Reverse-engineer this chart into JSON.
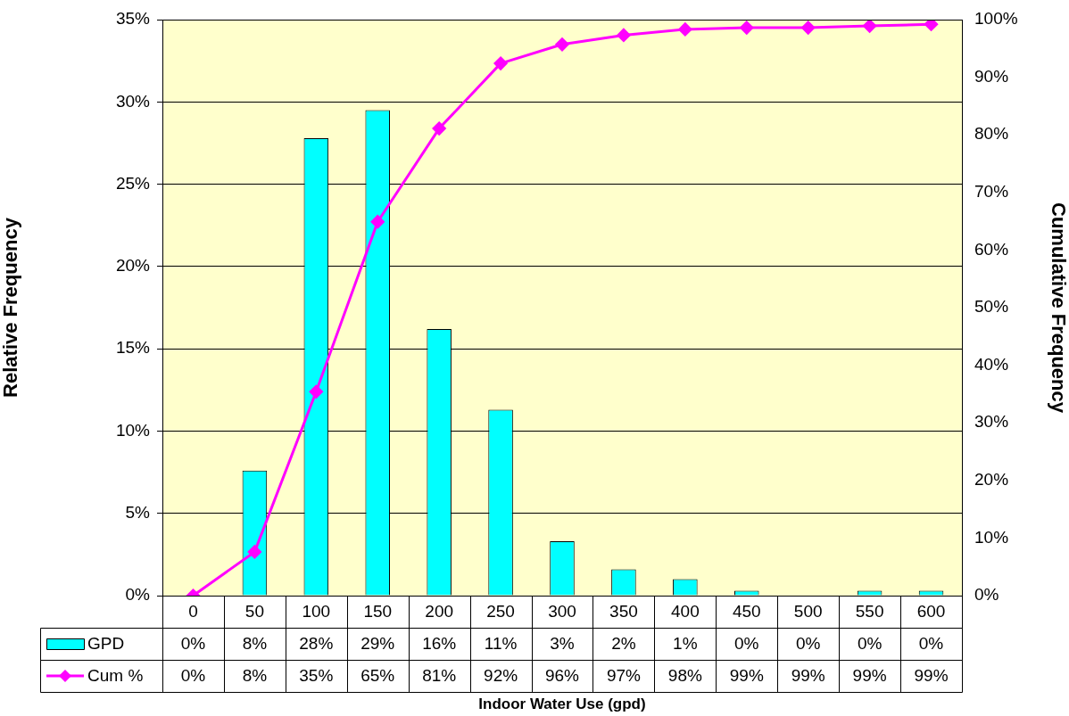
{
  "chart_data": {
    "type": "bar",
    "xlabel": "Indoor Water Use (gpd)",
    "ylabel": "Relative Frequency",
    "y2label": "Cumulative Frequency",
    "categories": [
      "0",
      "50",
      "100",
      "150",
      "200",
      "250",
      "300",
      "350",
      "400",
      "450",
      "500",
      "550",
      "600"
    ],
    "series": [
      {
        "name": "GPD",
        "color": "#00ffff",
        "values": [
          0,
          7.6,
          27.8,
          29.5,
          16.2,
          11.3,
          3.3,
          1.6,
          1.0,
          0.3,
          0,
          0.3,
          0.3
        ],
        "value_labels": [
          "0%",
          "8%",
          "28%",
          "29%",
          "16%",
          "11%",
          "3%",
          "2%",
          "1%",
          "0%",
          "0%",
          "0%",
          "0%"
        ]
      },
      {
        "name": "Cum %",
        "type": "line",
        "axis": "y2",
        "color": "#ff00ff",
        "marker": "diamond",
        "values": [
          0,
          7.6,
          35.4,
          64.9,
          81.1,
          92.4,
          95.7,
          97.3,
          98.3,
          98.6,
          98.6,
          98.9,
          99.2
        ],
        "value_labels": [
          "0%",
          "8%",
          "35%",
          "65%",
          "81%",
          "92%",
          "96%",
          "97%",
          "98%",
          "99%",
          "99%",
          "99%",
          "99%"
        ]
      }
    ],
    "ylim": [
      0,
      35
    ],
    "yticks": [
      {
        "value": 0,
        "label": "0%"
      },
      {
        "value": 5,
        "label": "5%"
      },
      {
        "value": 10,
        "label": "10%"
      },
      {
        "value": 15,
        "label": "15%"
      },
      {
        "value": 20,
        "label": "20%"
      },
      {
        "value": 25,
        "label": "25%"
      },
      {
        "value": 30,
        "label": "30%"
      },
      {
        "value": 35,
        "label": "35%"
      }
    ],
    "y2lim": [
      0,
      100
    ],
    "y2ticks": [
      {
        "value": 0,
        "label": "0%"
      },
      {
        "value": 10,
        "label": "10%"
      },
      {
        "value": 20,
        "label": "20%"
      },
      {
        "value": 30,
        "label": "30%"
      },
      {
        "value": 40,
        "label": "40%"
      },
      {
        "value": 50,
        "label": "50%"
      },
      {
        "value": 60,
        "label": "60%"
      },
      {
        "value": 70,
        "label": "70%"
      },
      {
        "value": 80,
        "label": "80%"
      },
      {
        "value": 90,
        "label": "90%"
      },
      {
        "value": 100,
        "label": "100%"
      }
    ],
    "grid": "y",
    "legend": "bottom left"
  }
}
